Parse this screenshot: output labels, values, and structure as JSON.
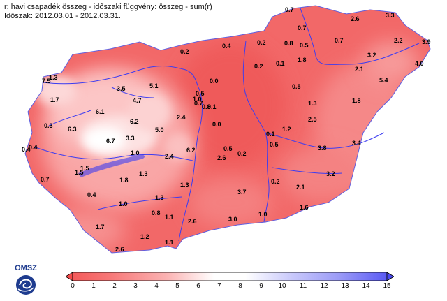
{
  "header": {
    "line1": "r: havi csapadék összeg - időszaki függvény: összeg - sum(r)",
    "line2": "Időszak: 2012.03.01 - 2012.03.31."
  },
  "logo": {
    "text": "OMSZ"
  },
  "colorbar": {
    "ticks": [
      "0",
      "1",
      "2",
      "3",
      "4",
      "5",
      "6",
      "7",
      "8",
      "9",
      "10",
      "11",
      "12",
      "13",
      "14",
      "15"
    ],
    "range": [
      0,
      15
    ],
    "low_color": "#f45a5a",
    "mid_color": "#ffffff",
    "high_color": "#5a5af4"
  },
  "map": {
    "base_color": "#f26a6a",
    "stations": [
      {
        "label": "0.7"
      },
      {
        "label": "2.6"
      },
      {
        "label": "3.3"
      },
      {
        "label": "0.7"
      },
      {
        "label": "2.2"
      },
      {
        "label": "3.9"
      },
      {
        "label": "0.4"
      },
      {
        "label": "0.2"
      },
      {
        "label": "0.8"
      },
      {
        "label": "0.5"
      },
      {
        "label": "0.7"
      },
      {
        "label": "3.2"
      },
      {
        "label": "0.2"
      },
      {
        "label": "1.8"
      },
      {
        "label": "7.5"
      },
      {
        "label": "0.2"
      },
      {
        "label": "0.1"
      },
      {
        "label": "1.3"
      },
      {
        "label": "2.1"
      },
      {
        "label": "4.0"
      },
      {
        "label": "0.0"
      },
      {
        "label": "5.4"
      },
      {
        "label": "3.5"
      },
      {
        "label": "5.1"
      },
      {
        "label": "0.5"
      },
      {
        "label": "1.7"
      },
      {
        "label": "4.7"
      },
      {
        "label": "0.5"
      },
      {
        "label": "1.0"
      },
      {
        "label": "0.7"
      },
      {
        "label": "0.8"
      },
      {
        "label": "0.1"
      },
      {
        "label": "1.8"
      },
      {
        "label": "1.3"
      },
      {
        "label": "6.1"
      },
      {
        "label": "6.2"
      },
      {
        "label": "2.4"
      },
      {
        "label": "0.0"
      },
      {
        "label": "2.5"
      },
      {
        "label": "0.3"
      },
      {
        "label": "6.3"
      },
      {
        "label": "5.0"
      },
      {
        "label": "1.2"
      },
      {
        "label": "0.1"
      },
      {
        "label": "6.7"
      },
      {
        "label": "3.3"
      },
      {
        "label": "0.4"
      },
      {
        "label": "0.4"
      },
      {
        "label": "1.0"
      },
      {
        "label": "6.2"
      },
      {
        "label": "0.5"
      },
      {
        "label": "0.2"
      },
      {
        "label": "2.4"
      },
      {
        "label": "2.6"
      },
      {
        "label": "0.5"
      },
      {
        "label": "3.8"
      },
      {
        "label": "3.4"
      },
      {
        "label": "1.5"
      },
      {
        "label": "1.5"
      },
      {
        "label": "1.3"
      },
      {
        "label": "3.2"
      },
      {
        "label": "0.7"
      },
      {
        "label": "1.8"
      },
      {
        "label": "1.3"
      },
      {
        "label": "0.2"
      },
      {
        "label": "2.1"
      },
      {
        "label": "0.4"
      },
      {
        "label": "1.3"
      },
      {
        "label": "3.7"
      },
      {
        "label": "1.0"
      },
      {
        "label": "1.6"
      },
      {
        "label": "0.8"
      },
      {
        "label": "1.1"
      },
      {
        "label": "1.0"
      },
      {
        "label": "3.0"
      },
      {
        "label": "1.7"
      },
      {
        "label": "2.6"
      },
      {
        "label": "1.2"
      },
      {
        "label": "1.1"
      },
      {
        "label": "2.6"
      }
    ]
  }
}
